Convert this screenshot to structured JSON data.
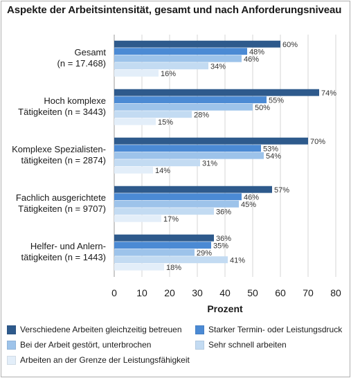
{
  "chart_data": {
    "type": "bar",
    "orientation": "horizontal",
    "title": "Aspekte der Arbeitsintensität, gesamt und nach Anforderungsniveau",
    "xlabel": "Prozent",
    "xlim": [
      0,
      80
    ],
    "xticks": [
      "0",
      "10",
      "20",
      "30",
      "40",
      "50",
      "60",
      "70",
      "80"
    ],
    "grid": true,
    "legend_position": "bottom",
    "categories": [
      [
        "Gesamt",
        "(n = 17.468)"
      ],
      [
        "Hoch komplexe",
        "Tätigkeiten (n = 3443)"
      ],
      [
        "Komplexe Spezialisten-",
        "tätigkeiten (n = 2874)"
      ],
      [
        "Fachlich ausgerichtete",
        "Tätigkeiten (n = 9707)"
      ],
      [
        "Helfer- und Anlern-",
        "tätigkeiten (n = 1443)"
      ]
    ],
    "series": [
      {
        "name": "Verschiedene Arbeiten gleichzeitig betreuen",
        "color": "#2e5a8c",
        "values": [
          60,
          74,
          70,
          57,
          36
        ]
      },
      {
        "name": "Starker Termin- oder Leistungsdruck",
        "color": "#4b8ad4",
        "values": [
          48,
          55,
          53,
          46,
          35
        ]
      },
      {
        "name": "Bei der Arbeit gestört, unterbrochen",
        "color": "#9dc3ea",
        "values": [
          46,
          50,
          54,
          45,
          29
        ]
      },
      {
        "name": "Sehr schnell arbeiten",
        "color": "#c3dbf2",
        "values": [
          34,
          28,
          31,
          36,
          41
        ]
      },
      {
        "name": "Arbeiten an der Grenze der Leistungsfähigkeit",
        "color": "#e3eef9",
        "values": [
          16,
          15,
          14,
          17,
          18
        ]
      }
    ]
  }
}
